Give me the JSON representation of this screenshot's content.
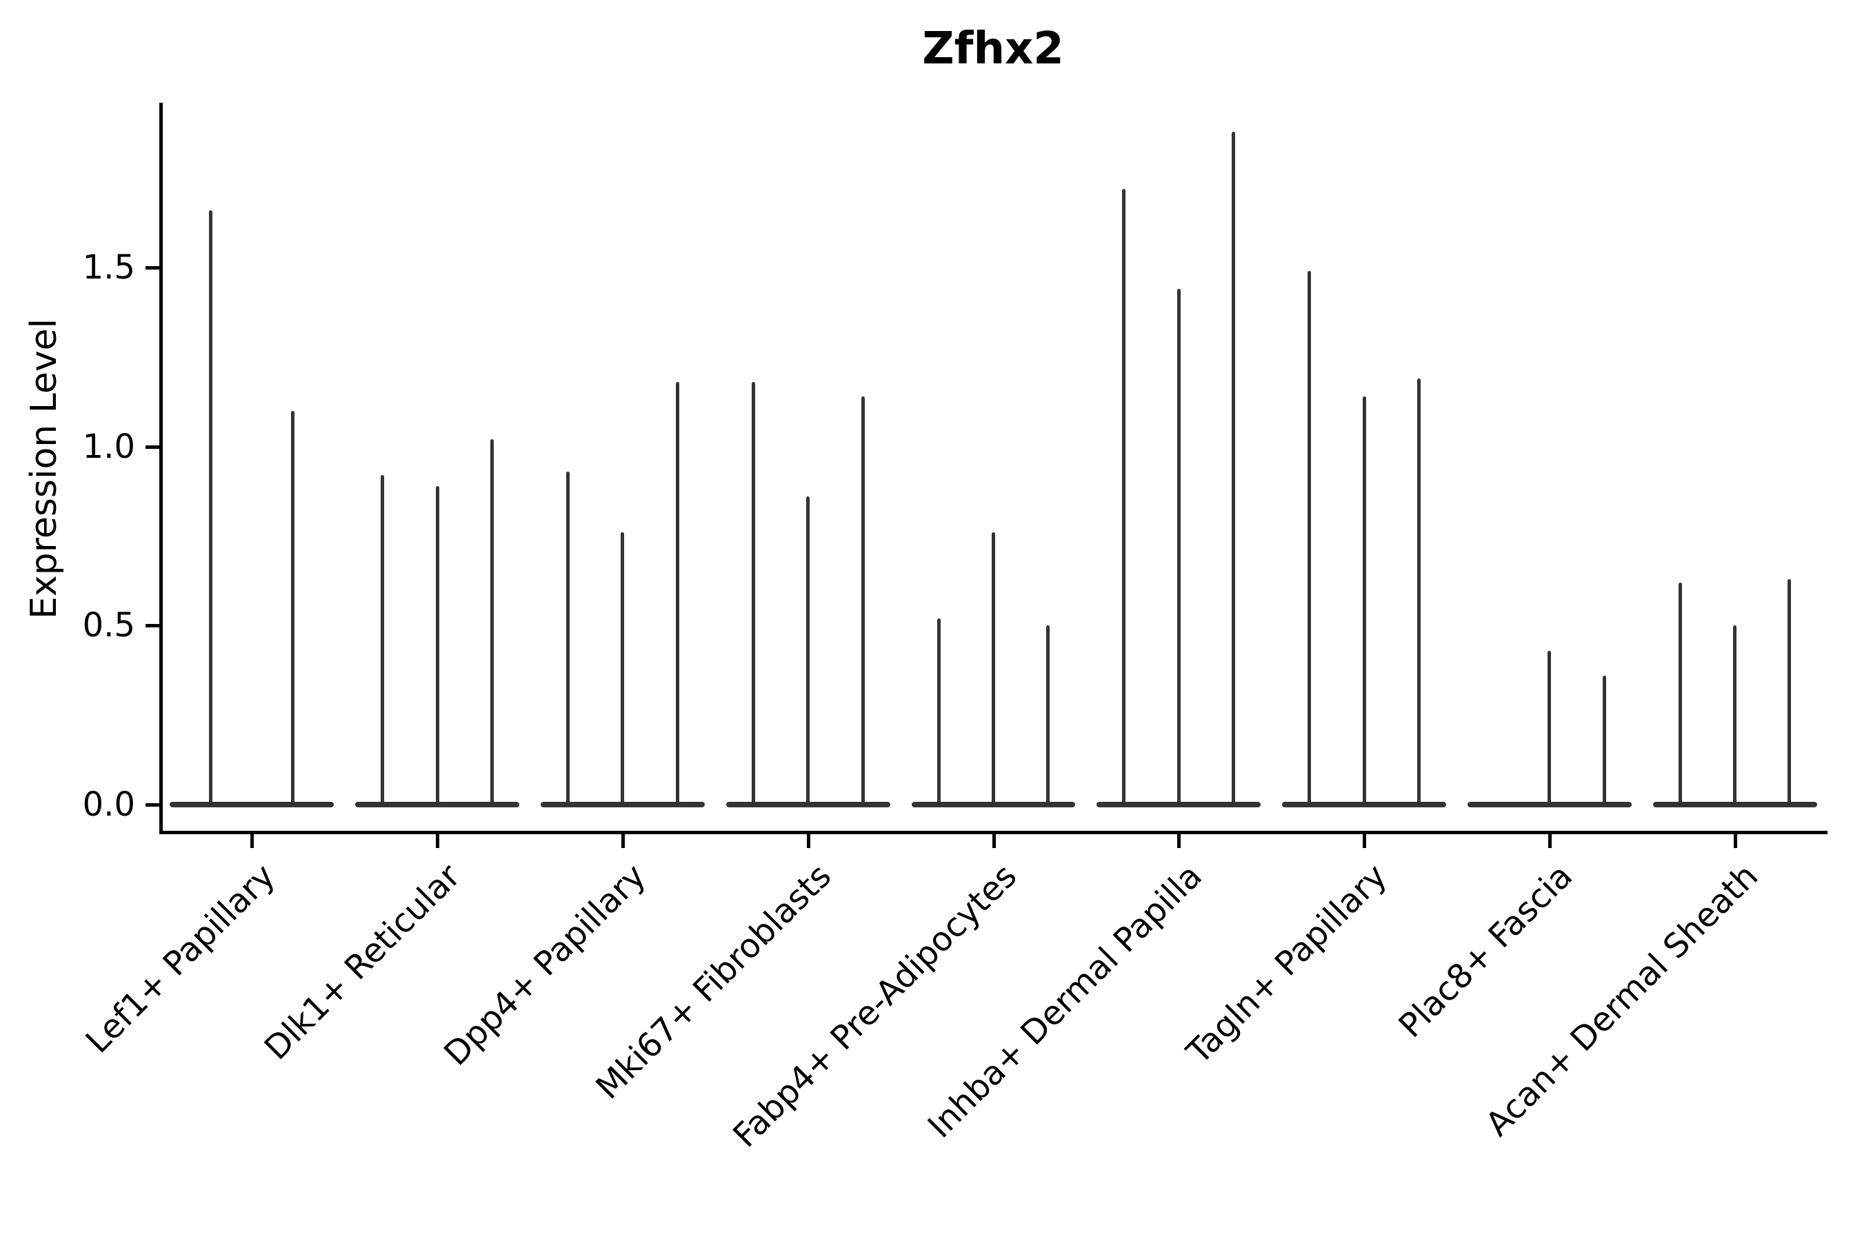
{
  "chart_data": {
    "type": "violin",
    "title": "Zfhx2",
    "ylabel": "Expression Level",
    "xlabel": "",
    "yticks": [
      "0.0",
      "0.5",
      "1.0",
      "1.5"
    ],
    "ylim": [
      0,
      1.96
    ],
    "grid": false,
    "legend": "none",
    "ink_color": "#333333",
    "axis_color": "#000000",
    "categories": [
      "Lef1+ Papillary",
      "Dlk1+ Reticular",
      "Dpp4+ Papillary",
      "Mki67+ Fibroblasts",
      "Fabp4+ Pre-Adipocytes",
      "Inhba+ Dermal Papilla",
      "Tagln+ Papillary",
      "Plac8+ Fascia",
      "Acan+ Dermal Sheath"
    ],
    "groups": [
      {
        "category": "Lef1+ Papillary",
        "violin_max_values": [
          1.66,
          1.1
        ]
      },
      {
        "category": "Dlk1+ Reticular",
        "violin_max_values": [
          0.92,
          0.89,
          1.02
        ]
      },
      {
        "category": "Dpp4+ Papillary",
        "violin_max_values": [
          0.93,
          0.76,
          1.18
        ]
      },
      {
        "category": "Mki67+ Fibroblasts",
        "violin_max_values": [
          1.18,
          0.86,
          1.14
        ]
      },
      {
        "category": "Fabp4+ Pre-Adipocytes",
        "violin_max_values": [
          0.52,
          0.76,
          0.5
        ]
      },
      {
        "category": "Inhba+ Dermal Papilla",
        "violin_max_values": [
          1.72,
          1.44,
          1.88
        ]
      },
      {
        "category": "Tagln+ Papillary",
        "violin_max_values": [
          1.49,
          1.14,
          1.19
        ]
      },
      {
        "category": "Plac8+ Fascia",
        "violin_max_values": [
          0.0,
          0.43,
          0.36
        ]
      },
      {
        "category": "Acan+ Dermal Sheath",
        "violin_max_values": [
          0.62,
          0.5,
          0.63
        ]
      }
    ],
    "description": "Violin plot of Zfhx2 expression per cluster; violins are collapsed flat at 0 with thin upper tails reaching the listed maxima."
  }
}
